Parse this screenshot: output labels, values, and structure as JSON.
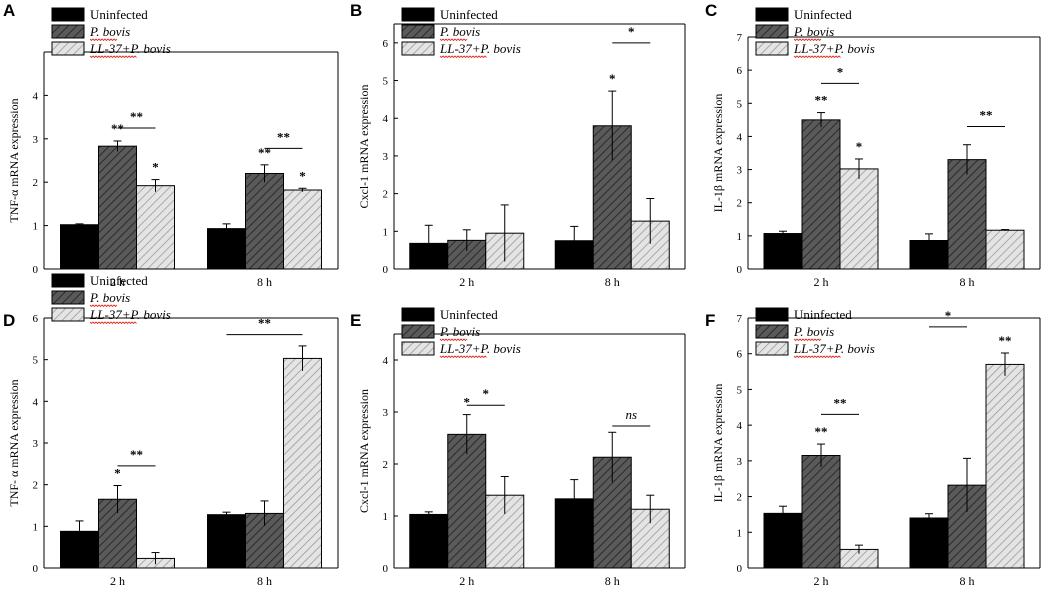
{
  "figure": {
    "legend": {
      "entries": [
        {
          "label": "Uninfected",
          "italic_parts": ""
        },
        {
          "label": "P. bovis",
          "italic_parts": "all"
        },
        {
          "label": "LL-37+P. bovis",
          "italic_parts": "all"
        }
      ],
      "underline_color": "#e0342b"
    },
    "colors": {
      "uninfected": "#000000",
      "p_bovis": "#555555",
      "ll37": "#d6d6d6",
      "axis": "#000000"
    }
  },
  "chart_data": [
    {
      "panel": "A",
      "type": "bar",
      "ylabel": "TNF-α mRNA expression",
      "ylim": [
        0,
        5
      ],
      "yticks": [
        0,
        1,
        2,
        3,
        4
      ],
      "categories": [
        "2 h",
        "8 h"
      ],
      "series": [
        {
          "name": "Uninfected",
          "values": [
            1.02,
            0.93
          ],
          "errors": [
            0.02,
            0.11
          ]
        },
        {
          "name": "P. bovis",
          "values": [
            2.83,
            2.2
          ],
          "errors": [
            0.12,
            0.2
          ]
        },
        {
          "name": "LL-37+P. bovis",
          "values": [
            1.92,
            1.82
          ],
          "errors": [
            0.14,
            0.04
          ]
        }
      ],
      "bar_labels": [
        {
          "category": 0,
          "series": 1,
          "text": "**"
        },
        {
          "category": 0,
          "series": 2,
          "text": "*"
        },
        {
          "category": 1,
          "series": 1,
          "text": "**"
        },
        {
          "category": 1,
          "series": 2,
          "text": "*"
        }
      ],
      "brackets": [
        {
          "category": 0,
          "from": 1,
          "to": 2,
          "y": 3.25,
          "text": "**"
        },
        {
          "category": 1,
          "from": 1,
          "to": 2,
          "y": 2.78,
          "text": "**"
        }
      ]
    },
    {
      "panel": "B",
      "type": "bar",
      "ylabel": "Cxcl-1 mRNA expression",
      "ylim": [
        0,
        6.5
      ],
      "yticks": [
        0,
        1,
        2,
        3,
        4,
        5,
        6
      ],
      "categories": [
        "2 h",
        "8 h"
      ],
      "series": [
        {
          "name": "Uninfected",
          "values": [
            0.68,
            0.75
          ],
          "errors": [
            0.48,
            0.38
          ]
        },
        {
          "name": "P. bovis",
          "values": [
            0.76,
            3.8
          ],
          "errors": [
            0.28,
            0.92
          ]
        },
        {
          "name": "LL-37+P. bovis",
          "values": [
            0.95,
            1.27
          ],
          "errors": [
            0.75,
            0.6
          ]
        }
      ],
      "bar_labels": [
        {
          "category": 1,
          "series": 1,
          "text": "*"
        }
      ],
      "brackets": [
        {
          "category": 1,
          "from": 1,
          "to": 2,
          "y": 6.0,
          "text": "*"
        }
      ]
    },
    {
      "panel": "C",
      "type": "bar",
      "ylabel": "IL-1β mRNA expression",
      "ylim": [
        0,
        7
      ],
      "yticks": [
        0,
        1,
        2,
        3,
        4,
        5,
        6,
        7
      ],
      "categories": [
        "2 h",
        "8 h"
      ],
      "series": [
        {
          "name": "Uninfected",
          "values": [
            1.07,
            0.86
          ],
          "errors": [
            0.07,
            0.2
          ]
        },
        {
          "name": "P. bovis",
          "values": [
            4.5,
            3.3
          ],
          "errors": [
            0.22,
            0.45
          ]
        },
        {
          "name": "LL-37+P. bovis",
          "values": [
            3.02,
            1.17
          ],
          "errors": [
            0.3,
            0.02
          ]
        }
      ],
      "bar_labels": [
        {
          "category": 0,
          "series": 1,
          "text": "**"
        },
        {
          "category": 0,
          "series": 2,
          "text": "*"
        }
      ],
      "brackets": [
        {
          "category": 0,
          "from": 1,
          "to": 2,
          "y": 5.6,
          "text": "*"
        },
        {
          "category": 1,
          "from": 1,
          "to": 2,
          "y": 4.3,
          "text": "**"
        }
      ]
    },
    {
      "panel": "D",
      "type": "bar",
      "ylabel": "TNF- α mRNA expression",
      "ylim": [
        0,
        6
      ],
      "yticks": [
        0,
        1,
        2,
        3,
        4,
        5,
        6
      ],
      "categories": [
        "2 h",
        "8 h"
      ],
      "series": [
        {
          "name": "Uninfected",
          "values": [
            0.88,
            1.28
          ],
          "errors": [
            0.25,
            0.06
          ]
        },
        {
          "name": "P. bovis",
          "values": [
            1.65,
            1.31
          ],
          "errors": [
            0.33,
            0.3
          ]
        },
        {
          "name": "LL-37+P. bovis",
          "values": [
            0.23,
            5.03
          ],
          "errors": [
            0.14,
            0.3
          ]
        }
      ],
      "bar_labels": [
        {
          "category": 0,
          "series": 1,
          "text": "*"
        }
      ],
      "brackets": [
        {
          "category": 0,
          "from": 1,
          "to": 2,
          "y": 2.45,
          "text": "**"
        },
        {
          "category": 1,
          "from": 0,
          "to": 2,
          "y": 5.6,
          "text": "**"
        }
      ]
    },
    {
      "panel": "E",
      "type": "bar",
      "ylabel": "Cxcl-1 mRNA expression",
      "ylim": [
        0,
        4.5
      ],
      "yticks": [
        0,
        1,
        2,
        3,
        4
      ],
      "categories": [
        "2 h",
        "8 h"
      ],
      "series": [
        {
          "name": "Uninfected",
          "values": [
            1.03,
            1.33
          ],
          "errors": [
            0.05,
            0.37
          ]
        },
        {
          "name": "P. bovis",
          "values": [
            2.57,
            2.13
          ],
          "errors": [
            0.38,
            0.48
          ]
        },
        {
          "name": "LL-37+P. bovis",
          "values": [
            1.4,
            1.13
          ],
          "errors": [
            0.36,
            0.27
          ]
        }
      ],
      "bar_labels": [
        {
          "category": 0,
          "series": 1,
          "text": "*"
        }
      ],
      "brackets": [
        {
          "category": 0,
          "from": 1,
          "to": 2,
          "y": 3.13,
          "text": "*"
        },
        {
          "category": 1,
          "from": 1,
          "to": 2,
          "y": 2.73,
          "text": "ns"
        }
      ]
    },
    {
      "panel": "F",
      "type": "bar",
      "ylabel": "IL-1β mRNA expression",
      "ylim": [
        0,
        7
      ],
      "yticks": [
        0,
        1,
        2,
        3,
        4,
        5,
        6,
        7
      ],
      "categories": [
        "2 h",
        "8 h"
      ],
      "series": [
        {
          "name": "Uninfected",
          "values": [
            1.53,
            1.4
          ],
          "errors": [
            0.2,
            0.12
          ]
        },
        {
          "name": "P. bovis",
          "values": [
            3.15,
            2.32
          ],
          "errors": [
            0.32,
            0.75
          ]
        },
        {
          "name": "LL-37+P. bovis",
          "values": [
            0.52,
            5.7
          ],
          "errors": [
            0.12,
            0.32
          ]
        }
      ],
      "bar_labels": [
        {
          "category": 0,
          "series": 1,
          "text": "**"
        },
        {
          "category": 1,
          "series": 2,
          "text": "**"
        }
      ],
      "brackets": [
        {
          "category": 0,
          "from": 1,
          "to": 2,
          "y": 4.3,
          "text": "**"
        },
        {
          "category": 1,
          "from": 0,
          "to": 1,
          "y": 6.75,
          "text": "*"
        }
      ]
    }
  ]
}
